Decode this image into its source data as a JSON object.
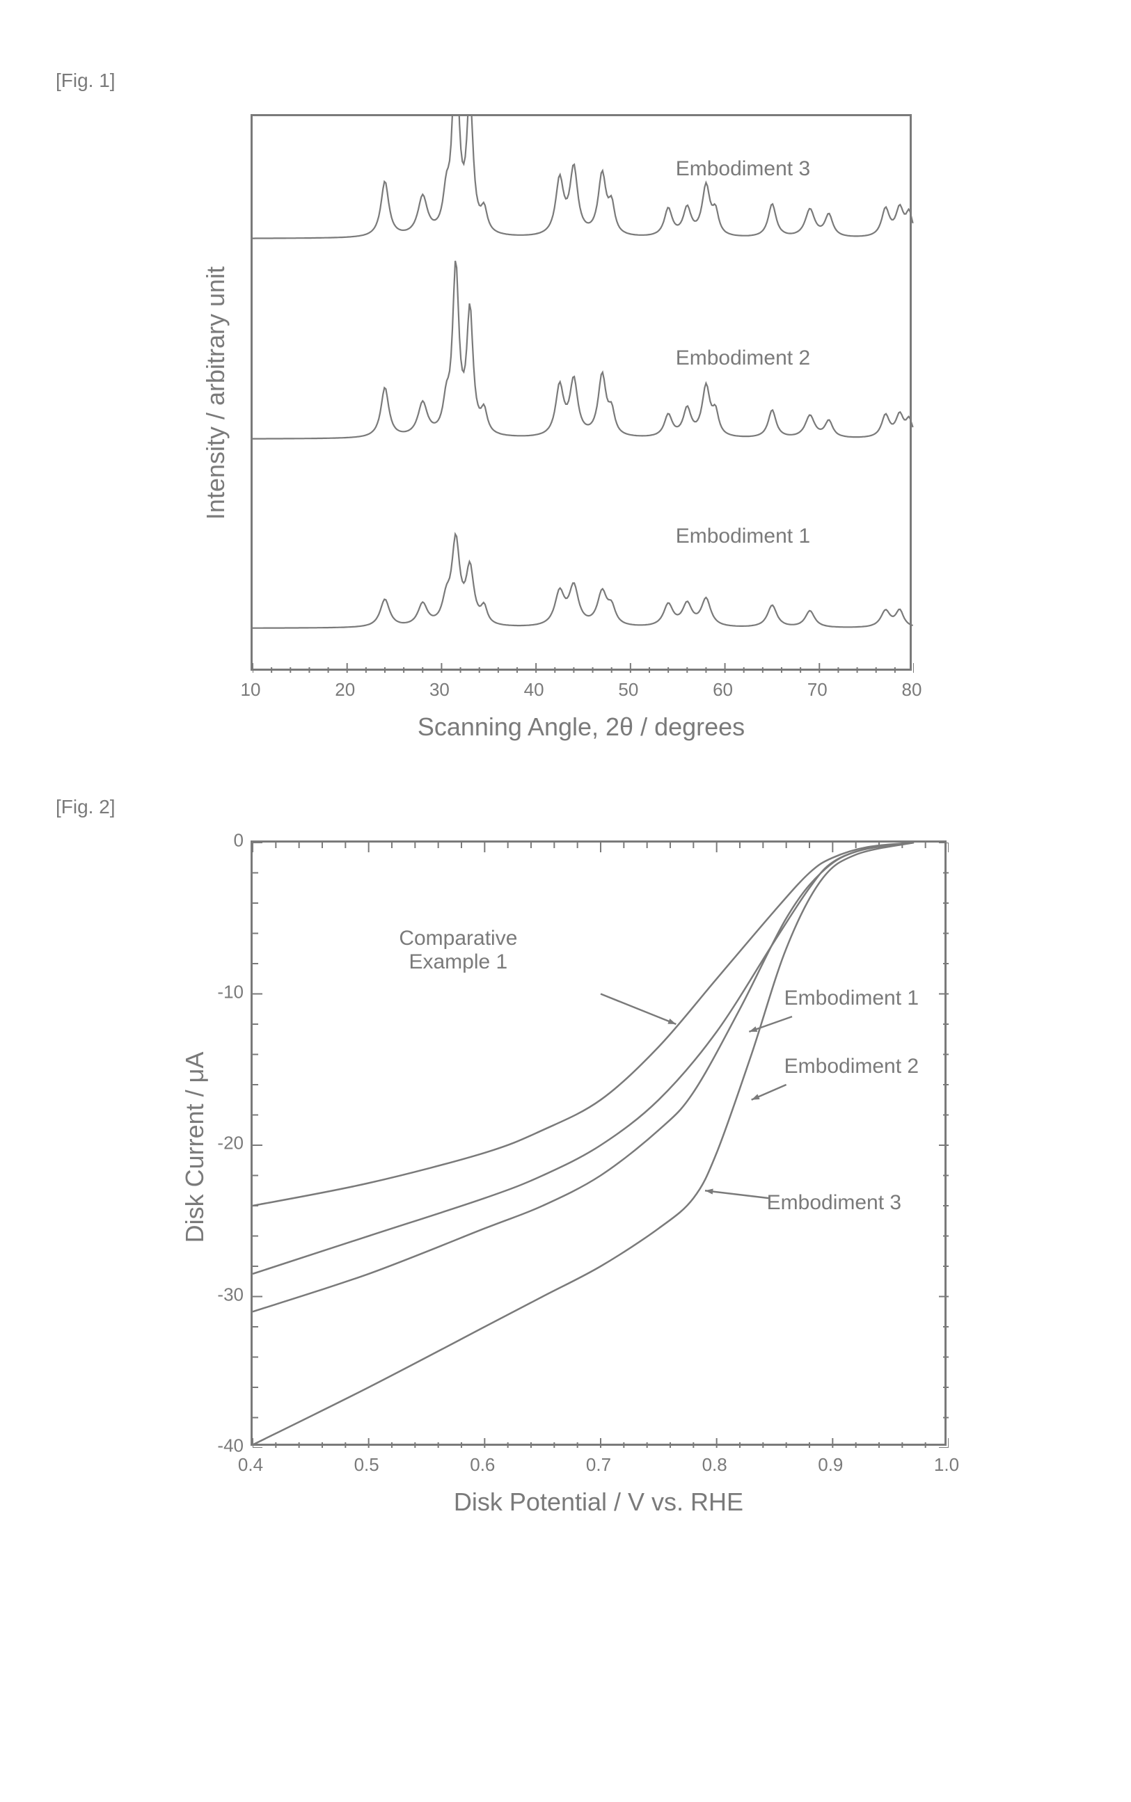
{
  "fig1": {
    "label": "[Fig. 1]",
    "type": "xrd-line-stack",
    "xlabel": "Scanning Angle, 2θ / degrees",
    "ylabel": "Intensity / arbitrary unit",
    "xlim": [
      10,
      80
    ],
    "xticks": [
      10,
      20,
      30,
      40,
      50,
      60,
      70,
      80
    ],
    "minor_tick_step_x": 2,
    "plot_color": "#7a7a7a",
    "line_width": 2.2,
    "border_color": "#7a7a7a",
    "background_color": "#ffffff",
    "series": [
      {
        "name": "Embodiment 3",
        "baseline_y": 0.78,
        "label_x": 55,
        "label_y": 0.9,
        "peaks": [
          {
            "x": 24,
            "h": 0.1,
            "w": 0.5
          },
          {
            "x": 28,
            "h": 0.07,
            "w": 0.6
          },
          {
            "x": 30.5,
            "h": 0.06,
            "w": 0.4
          },
          {
            "x": 31.5,
            "h": 0.34,
            "w": 0.4
          },
          {
            "x": 33,
            "h": 0.24,
            "w": 0.4
          },
          {
            "x": 34.5,
            "h": 0.04,
            "w": 0.4
          },
          {
            "x": 42.5,
            "h": 0.1,
            "w": 0.5
          },
          {
            "x": 44,
            "h": 0.12,
            "w": 0.5
          },
          {
            "x": 47,
            "h": 0.11,
            "w": 0.5
          },
          {
            "x": 48,
            "h": 0.05,
            "w": 0.4
          },
          {
            "x": 54,
            "h": 0.05,
            "w": 0.5
          },
          {
            "x": 56,
            "h": 0.05,
            "w": 0.5
          },
          {
            "x": 58,
            "h": 0.09,
            "w": 0.5
          },
          {
            "x": 59,
            "h": 0.04,
            "w": 0.4
          },
          {
            "x": 65,
            "h": 0.06,
            "w": 0.5
          },
          {
            "x": 69,
            "h": 0.05,
            "w": 0.6
          },
          {
            "x": 71,
            "h": 0.04,
            "w": 0.5
          },
          {
            "x": 77,
            "h": 0.05,
            "w": 0.5
          },
          {
            "x": 78.5,
            "h": 0.05,
            "w": 0.5
          },
          {
            "x": 79.5,
            "h": 0.04,
            "w": 0.4
          }
        ]
      },
      {
        "name": "Embodiment 2",
        "baseline_y": 0.42,
        "label_x": 55,
        "label_y": 0.56,
        "peaks": [
          {
            "x": 24,
            "h": 0.09,
            "w": 0.5
          },
          {
            "x": 28,
            "h": 0.06,
            "w": 0.6
          },
          {
            "x": 30.5,
            "h": 0.05,
            "w": 0.4
          },
          {
            "x": 31.5,
            "h": 0.3,
            "w": 0.4
          },
          {
            "x": 33,
            "h": 0.22,
            "w": 0.4
          },
          {
            "x": 34.5,
            "h": 0.04,
            "w": 0.4
          },
          {
            "x": 42.5,
            "h": 0.09,
            "w": 0.5
          },
          {
            "x": 44,
            "h": 0.1,
            "w": 0.5
          },
          {
            "x": 47,
            "h": 0.11,
            "w": 0.5
          },
          {
            "x": 48,
            "h": 0.04,
            "w": 0.4
          },
          {
            "x": 54,
            "h": 0.04,
            "w": 0.5
          },
          {
            "x": 56,
            "h": 0.05,
            "w": 0.5
          },
          {
            "x": 58,
            "h": 0.09,
            "w": 0.5
          },
          {
            "x": 59,
            "h": 0.04,
            "w": 0.4
          },
          {
            "x": 65,
            "h": 0.05,
            "w": 0.5
          },
          {
            "x": 69,
            "h": 0.04,
            "w": 0.6
          },
          {
            "x": 71,
            "h": 0.03,
            "w": 0.5
          },
          {
            "x": 77,
            "h": 0.04,
            "w": 0.5
          },
          {
            "x": 78.5,
            "h": 0.04,
            "w": 0.5
          },
          {
            "x": 79.5,
            "h": 0.03,
            "w": 0.4
          }
        ]
      },
      {
        "name": "Embodiment 1",
        "baseline_y": 0.08,
        "label_x": 55,
        "label_y": 0.24,
        "peaks": [
          {
            "x": 24,
            "h": 0.05,
            "w": 0.6
          },
          {
            "x": 28,
            "h": 0.04,
            "w": 0.6
          },
          {
            "x": 30.5,
            "h": 0.04,
            "w": 0.5
          },
          {
            "x": 31.5,
            "h": 0.15,
            "w": 0.5
          },
          {
            "x": 33,
            "h": 0.1,
            "w": 0.5
          },
          {
            "x": 34.5,
            "h": 0.03,
            "w": 0.4
          },
          {
            "x": 42.5,
            "h": 0.06,
            "w": 0.6
          },
          {
            "x": 44,
            "h": 0.07,
            "w": 0.6
          },
          {
            "x": 47,
            "h": 0.06,
            "w": 0.6
          },
          {
            "x": 48,
            "h": 0.03,
            "w": 0.5
          },
          {
            "x": 54,
            "h": 0.04,
            "w": 0.6
          },
          {
            "x": 56,
            "h": 0.04,
            "w": 0.6
          },
          {
            "x": 58,
            "h": 0.05,
            "w": 0.6
          },
          {
            "x": 65,
            "h": 0.04,
            "w": 0.6
          },
          {
            "x": 69,
            "h": 0.03,
            "w": 0.6
          },
          {
            "x": 77,
            "h": 0.03,
            "w": 0.6
          },
          {
            "x": 78.5,
            "h": 0.03,
            "w": 0.5
          }
        ]
      }
    ]
  },
  "fig2": {
    "label": "[Fig. 2]",
    "type": "line",
    "xlabel": "Disk Potential / V vs. RHE",
    "ylabel": "Disk Current / μA",
    "xlim": [
      0.4,
      1.0
    ],
    "ylim": [
      -40,
      0
    ],
    "xticks": [
      0.4,
      0.5,
      0.6,
      0.7,
      0.8,
      0.9,
      1.0
    ],
    "yticks": [
      0,
      -10,
      -20,
      -30,
      -40
    ],
    "minor_tick_step_x": 0.02,
    "minor_tick_step_y": 2,
    "plot_color": "#7a7a7a",
    "line_width": 2.5,
    "border_color": "#7a7a7a",
    "background_color": "#ffffff",
    "series": [
      {
        "name": "Comparative Example 1",
        "label_x": 0.6,
        "label_y": -8,
        "arrow_from": [
          0.7,
          -10
        ],
        "arrow_to": [
          0.765,
          -12
        ],
        "points": [
          [
            0.4,
            -24
          ],
          [
            0.5,
            -22.5
          ],
          [
            0.6,
            -20.5
          ],
          [
            0.65,
            -19
          ],
          [
            0.7,
            -17
          ],
          [
            0.75,
            -13.5
          ],
          [
            0.8,
            -9
          ],
          [
            0.85,
            -4.5
          ],
          [
            0.88,
            -2
          ],
          [
            0.9,
            -1
          ],
          [
            0.93,
            -0.3
          ],
          [
            0.97,
            0
          ]
        ]
      },
      {
        "name": "Embodiment 1",
        "label_x": 0.86,
        "label_y": -10.5,
        "arrow_from": [
          0.865,
          -11.5
        ],
        "arrow_to": [
          0.828,
          -12.5
        ],
        "points": [
          [
            0.4,
            -28.5
          ],
          [
            0.5,
            -26
          ],
          [
            0.6,
            -23.5
          ],
          [
            0.65,
            -22
          ],
          [
            0.7,
            -20
          ],
          [
            0.75,
            -17
          ],
          [
            0.8,
            -12.5
          ],
          [
            0.85,
            -6.5
          ],
          [
            0.88,
            -3
          ],
          [
            0.9,
            -1.3
          ],
          [
            0.93,
            -0.4
          ],
          [
            0.97,
            0
          ]
        ]
      },
      {
        "name": "Embodiment 2",
        "label_x": 0.86,
        "label_y": -15,
        "arrow_from": [
          0.86,
          -16
        ],
        "arrow_to": [
          0.83,
          -17
        ],
        "points": [
          [
            0.4,
            -31
          ],
          [
            0.5,
            -28.5
          ],
          [
            0.6,
            -25.5
          ],
          [
            0.65,
            -24
          ],
          [
            0.7,
            -22
          ],
          [
            0.75,
            -19
          ],
          [
            0.78,
            -16.5
          ],
          [
            0.82,
            -11
          ],
          [
            0.86,
            -5
          ],
          [
            0.89,
            -2
          ],
          [
            0.92,
            -0.6
          ],
          [
            0.97,
            0
          ]
        ]
      },
      {
        "name": "Embodiment 3",
        "label_x": 0.845,
        "label_y": -24,
        "arrow_from": [
          0.845,
          -23.5
        ],
        "arrow_to": [
          0.79,
          -23
        ],
        "points": [
          [
            0.4,
            -39.8
          ],
          [
            0.5,
            -36
          ],
          [
            0.6,
            -32
          ],
          [
            0.65,
            -30
          ],
          [
            0.7,
            -28
          ],
          [
            0.75,
            -25.5
          ],
          [
            0.78,
            -23.5
          ],
          [
            0.8,
            -20.5
          ],
          [
            0.83,
            -14
          ],
          [
            0.86,
            -7
          ],
          [
            0.89,
            -2.5
          ],
          [
            0.92,
            -0.8
          ],
          [
            0.97,
            0
          ]
        ]
      }
    ]
  }
}
